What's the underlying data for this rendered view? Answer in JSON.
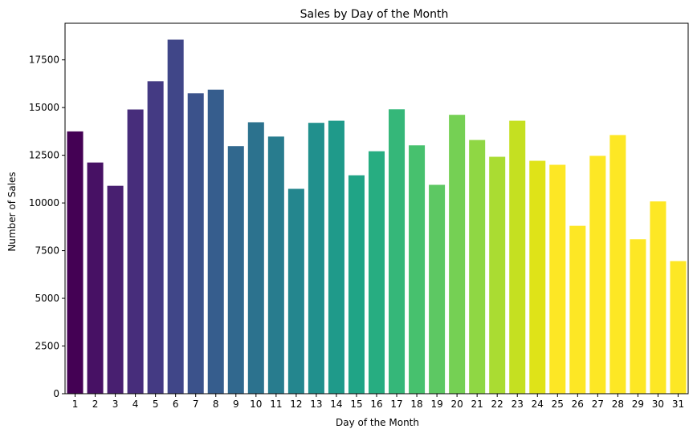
{
  "chart_data": {
    "type": "bar",
    "title": "Sales by Day of the Month",
    "xlabel": "Day of the Month",
    "ylabel": "Number of Sales",
    "categories": [
      "1",
      "2",
      "3",
      "4",
      "5",
      "6",
      "7",
      "8",
      "9",
      "10",
      "11",
      "12",
      "13",
      "14",
      "15",
      "16",
      "17",
      "18",
      "19",
      "20",
      "21",
      "22",
      "23",
      "24",
      "25",
      "26",
      "27",
      "28",
      "29",
      "30",
      "31"
    ],
    "values": [
      13750,
      12120,
      10900,
      14900,
      16380,
      18560,
      15750,
      15940,
      12980,
      14230,
      13480,
      10740,
      14200,
      14310,
      11450,
      12710,
      14910,
      13020,
      10950,
      14620,
      13300,
      12420,
      14310,
      12210,
      12000,
      8800,
      12470,
      13560,
      8100,
      10080,
      6950
    ],
    "ylim": [
      0,
      19420
    ],
    "yticks": [
      0,
      2500,
      5000,
      7500,
      10000,
      12500,
      15000,
      17500
    ],
    "colors": [
      "#440154",
      "#471164",
      "#481f70",
      "#472d7b",
      "#443a83",
      "#404688",
      "#3b528b",
      "#365d8d",
      "#31688e",
      "#2c728e",
      "#287c8e",
      "#24868e",
      "#21908d",
      "#1f9a8a",
      "#20a486",
      "#27ad81",
      "#35b779",
      "#47c16e",
      "#5dc863",
      "#75d054",
      "#8fd744",
      "#aadc32",
      "#c5e021",
      "#dfe318",
      "#fde725",
      "#fde725",
      "#fde725",
      "#fde725",
      "#fde725",
      "#fde725",
      "#fde725"
    ],
    "palette": "viridis",
    "grid": false,
    "legend": "none"
  }
}
